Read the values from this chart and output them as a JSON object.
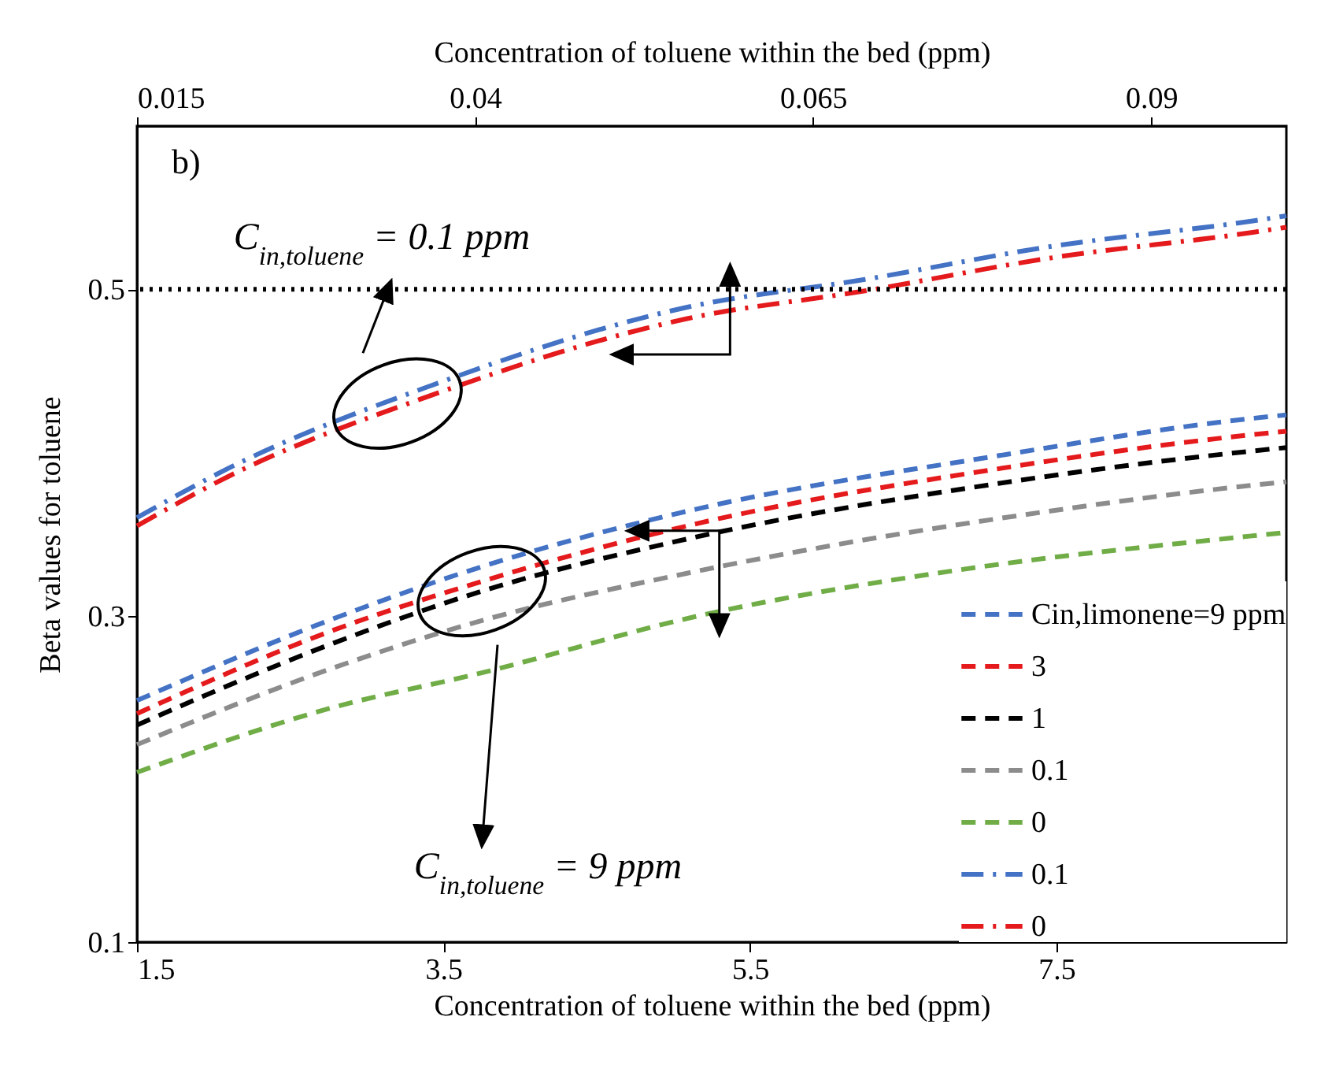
{
  "chart_data": {
    "type": "line",
    "xlabel": "Concentration of toluene within the bed (ppm)",
    "x2label": "Concentration of toluene within the bed (ppm)",
    "ylabel": "Beta values for toluene",
    "xlim": [
      1.5,
      9
    ],
    "xticks": [
      1.5,
      3.5,
      5.5,
      7.5
    ],
    "x2lim": [
      0.015,
      0.1
    ],
    "x2ticks": [
      0.015,
      0.04,
      0.065,
      0.09
    ],
    "ylim": [
      0.1,
      0.6
    ],
    "yticks": [
      0.1,
      0.3,
      0.5
    ],
    "grid": false,
    "legend": "bottom right",
    "annotations": [
      "b)",
      "C$_{in,toluene}$ = 0.1 ppm",
      "C$_{in,toluene}$ = 9 ppm"
    ],
    "ref_lines": [
      {
        "axis": "y",
        "value": 0.5,
        "color": "#000000",
        "line_style": "dotted"
      }
    ],
    "series": [
      {
        "name": "Cin,limonene=9 ppm",
        "color": "#4472c4",
        "line_style": "dashed",
        "x": [
          1.5,
          2.75,
          3.75,
          5.09,
          7.12,
          8.79,
          9
        ],
        "values": [
          0.248,
          0.297,
          0.33,
          0.364,
          0.398,
          0.421,
          0.423
        ]
      },
      {
        "name": "3",
        "color": "#e41a1c",
        "line_style": "dashed",
        "x": [
          1.5,
          2.75,
          3.75,
          5.09,
          7.12,
          8.79,
          9
        ],
        "values": [
          0.24,
          0.29,
          0.321,
          0.355,
          0.39,
          0.411,
          0.413
        ]
      },
      {
        "name": "1",
        "color": "#000000",
        "line_style": "dashed",
        "x": [
          1.5,
          2.75,
          3.75,
          5.09,
          7.12,
          8.79,
          9
        ],
        "values": [
          0.233,
          0.282,
          0.315,
          0.347,
          0.381,
          0.401,
          0.403
        ]
      },
      {
        "name": "0.1",
        "color": "#8c8c8c",
        "line_style": "dashed",
        "x": [
          1.5,
          2.75,
          3.75,
          5.09,
          7.45,
          8.79,
          9
        ],
        "values": [
          0.221,
          0.267,
          0.297,
          0.326,
          0.364,
          0.38,
          0.382
        ]
      },
      {
        "name": "0",
        "color": "#70ad47",
        "line_style": "dashed",
        "x": [
          1.5,
          2.75,
          3.75,
          5.17,
          6.79,
          8.79,
          9
        ],
        "values": [
          0.204,
          0.243,
          0.265,
          0.3,
          0.327,
          0.349,
          0.351
        ]
      },
      {
        "name": "0.1",
        "color": "#4472c4",
        "line_style": "dashdot",
        "x": [
          1.5,
          2.09,
          3.42,
          5.09,
          6.25,
          7.45,
          8.79,
          9
        ],
        "values": [
          0.36,
          0.39,
          0.441,
          0.489,
          0.506,
          0.526,
          0.542,
          0.545
        ]
      },
      {
        "name": "0",
        "color": "#e41a1c",
        "line_style": "dashdot",
        "x": [
          1.5,
          2.09,
          3.42,
          5.09,
          6.25,
          7.45,
          8.79,
          9
        ],
        "values": [
          0.355,
          0.385,
          0.435,
          0.482,
          0.499,
          0.519,
          0.535,
          0.538
        ]
      }
    ]
  }
}
